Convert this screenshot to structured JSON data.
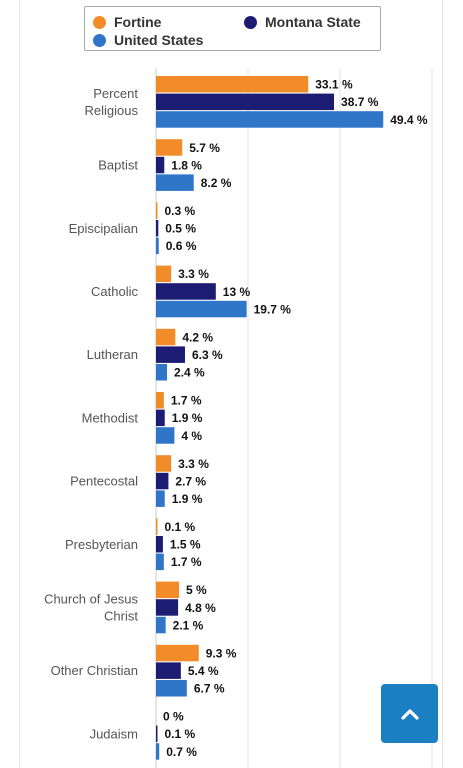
{
  "chart_data": {
    "type": "bar",
    "orientation": "horizontal",
    "categories": [
      "Percent Religious",
      "Baptist",
      "Episcipalian",
      "Catholic",
      "Lutheran",
      "Methodist",
      "Pentecostal",
      "Presbyterian",
      "Church of Jesus Christ",
      "Other Christian",
      "Judaism"
    ],
    "series": [
      {
        "name": "Fortine",
        "color": "#f28c28",
        "values": [
          33.1,
          5.7,
          0.3,
          3.3,
          4.2,
          1.7,
          3.3,
          0.1,
          5,
          9.3,
          0
        ]
      },
      {
        "name": "Montana State",
        "color": "#1c1c73",
        "values": [
          38.7,
          1.8,
          0.5,
          13,
          6.3,
          1.9,
          2.7,
          1.5,
          4.8,
          5.4,
          0.1
        ]
      },
      {
        "name": "United States",
        "color": "#2f75c8",
        "values": [
          49.4,
          8.2,
          0.6,
          19.7,
          2.4,
          4,
          1.9,
          1.7,
          2.1,
          6.7,
          0.7
        ]
      }
    ],
    "value_suffix": " %",
    "xlim": [
      0,
      62
    ],
    "grid": true,
    "legend_position": "top"
  },
  "legend": {
    "items": [
      {
        "name": "Fortine",
        "color": "#f28c28"
      },
      {
        "name": "Montana State",
        "color": "#1c1c73"
      },
      {
        "name": "United States",
        "color": "#2f75c8"
      }
    ]
  },
  "ui": {
    "scroll_top_icon": "chevron-up-icon",
    "accent": "#1b7fc4"
  }
}
